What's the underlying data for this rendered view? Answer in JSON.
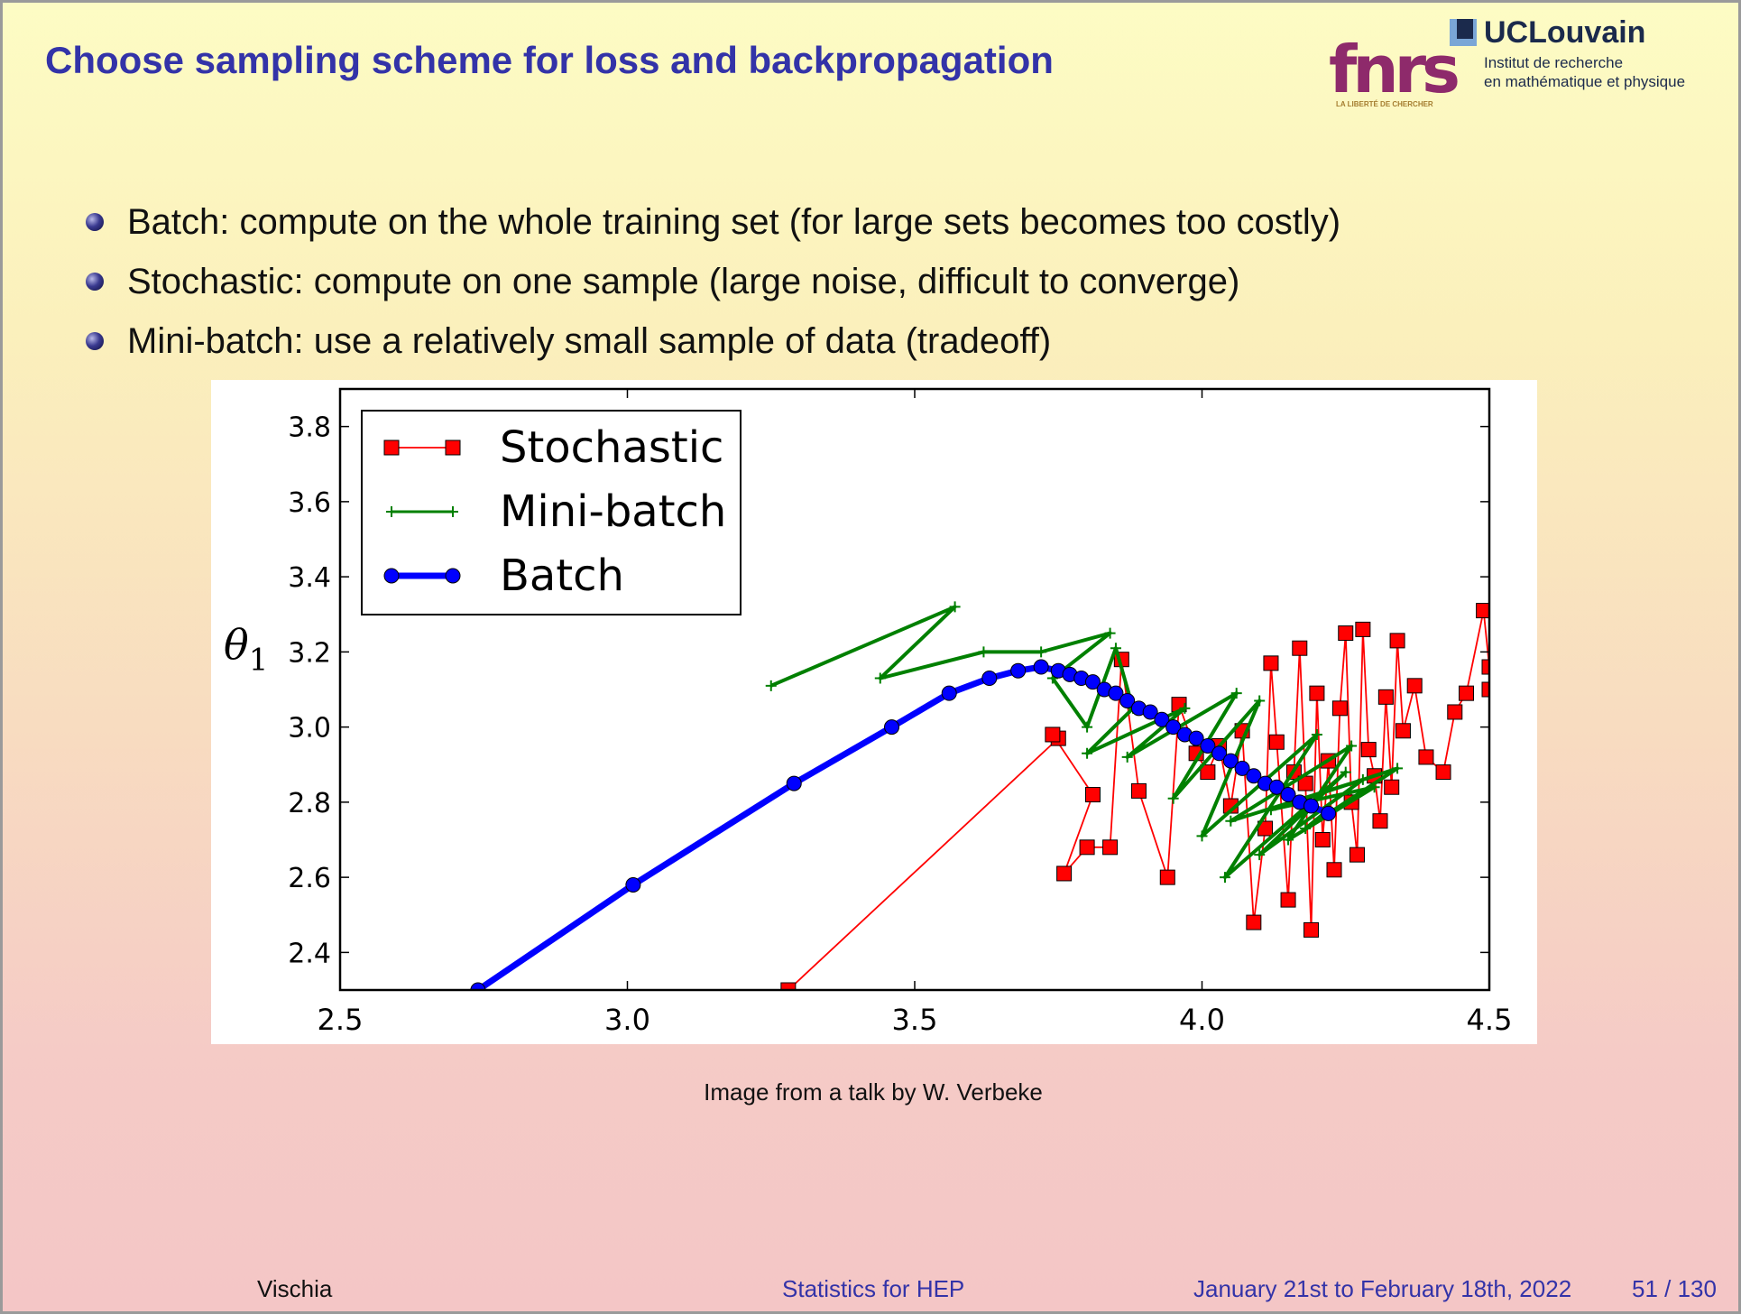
{
  "slide": {
    "title": "Choose sampling scheme for loss and backpropagation",
    "bullets": [
      "Batch: compute on the whole training set (for large sets becomes too costly)",
      "Stochastic: compute on one sample (large noise, difficult to converge)",
      "Mini-batch: use a relatively small sample of data (tradeoff)"
    ],
    "caption": "Image from a talk by W. Verbeke"
  },
  "logos": {
    "fnrs_word": "fnrs",
    "fnrs_tagline": "LA LIBERTÉ DE CHERCHER",
    "ucl_name": "UCLouvain",
    "ucl_line1": "Institut de recherche",
    "ucl_line2": "en mathématique et physique"
  },
  "footer": {
    "author": "Vischia",
    "course": "Statistics for HEP",
    "dates": "January 21st to February 18th, 2022",
    "page": "51 / 130"
  },
  "colors": {
    "title": "#3333a8",
    "stochastic": "#ff0000",
    "minibatch": "#008000",
    "batch": "#0000ff"
  },
  "chart_data": {
    "type": "line",
    "ylabel": "θ1",
    "xlabel": "",
    "xlim": [
      2.5,
      4.5
    ],
    "ylim": [
      2.3,
      3.9
    ],
    "xticks": [
      2.5,
      3.0,
      3.5,
      4.0,
      4.5
    ],
    "xtick_labels": [
      "2.5",
      "3.0",
      "3.5",
      "4.0",
      "4.5"
    ],
    "yticks": [
      2.4,
      2.6,
      2.8,
      3.0,
      3.2,
      3.4,
      3.6,
      3.8
    ],
    "ytick_labels": [
      "2.4",
      "2.6",
      "2.8",
      "3.0",
      "3.2",
      "3.4",
      "3.6",
      "3.8"
    ],
    "legend_position": "top-left",
    "series": [
      {
        "name": "Stochastic",
        "marker": "square",
        "points": [
          [
            3.28,
            2.3
          ],
          [
            3.75,
            2.97
          ],
          [
            3.74,
            2.98
          ],
          [
            3.81,
            2.82
          ],
          [
            3.76,
            2.61
          ],
          [
            3.8,
            2.68
          ],
          [
            3.84,
            2.68
          ],
          [
            3.86,
            3.18
          ],
          [
            3.89,
            2.83
          ],
          [
            3.94,
            2.6
          ],
          [
            3.96,
            3.06
          ],
          [
            3.99,
            2.93
          ],
          [
            4.01,
            2.88
          ],
          [
            4.03,
            2.95
          ],
          [
            4.05,
            2.79
          ],
          [
            4.07,
            2.99
          ],
          [
            4.09,
            2.48
          ],
          [
            4.11,
            2.73
          ],
          [
            4.12,
            3.17
          ],
          [
            4.13,
            2.96
          ],
          [
            4.15,
            2.54
          ],
          [
            4.16,
            2.88
          ],
          [
            4.17,
            3.21
          ],
          [
            4.18,
            2.85
          ],
          [
            4.19,
            2.46
          ],
          [
            4.2,
            3.09
          ],
          [
            4.21,
            2.7
          ],
          [
            4.22,
            2.91
          ],
          [
            4.23,
            2.62
          ],
          [
            4.24,
            3.05
          ],
          [
            4.25,
            3.25
          ],
          [
            4.26,
            2.8
          ],
          [
            4.27,
            2.66
          ],
          [
            4.28,
            3.26
          ],
          [
            4.29,
            2.94
          ],
          [
            4.3,
            2.87
          ],
          [
            4.31,
            2.75
          ],
          [
            4.32,
            3.08
          ],
          [
            4.33,
            2.84
          ],
          [
            4.34,
            3.23
          ],
          [
            4.35,
            2.99
          ],
          [
            4.37,
            3.11
          ],
          [
            4.39,
            2.92
          ],
          [
            4.42,
            2.88
          ],
          [
            4.44,
            3.04
          ],
          [
            4.46,
            3.09
          ],
          [
            4.49,
            3.31
          ],
          [
            4.5,
            3.16
          ],
          [
            4.5,
            3.1
          ]
        ]
      },
      {
        "name": "Mini-batch",
        "marker": "plus",
        "points": [
          [
            3.25,
            3.11
          ],
          [
            3.57,
            3.32
          ],
          [
            3.44,
            3.13
          ],
          [
            3.62,
            3.2
          ],
          [
            3.72,
            3.2
          ],
          [
            3.84,
            3.25
          ],
          [
            3.74,
            3.13
          ],
          [
            3.8,
            3.0
          ],
          [
            3.85,
            3.21
          ],
          [
            3.88,
            3.05
          ],
          [
            3.8,
            2.93
          ],
          [
            3.97,
            3.05
          ],
          [
            3.87,
            2.92
          ],
          [
            4.06,
            3.09
          ],
          [
            3.95,
            2.81
          ],
          [
            4.1,
            3.07
          ],
          [
            4.0,
            2.71
          ],
          [
            4.2,
            2.98
          ],
          [
            4.04,
            2.6
          ],
          [
            4.25,
            2.88
          ],
          [
            4.1,
            2.66
          ],
          [
            4.28,
            2.86
          ],
          [
            4.05,
            2.75
          ],
          [
            4.26,
            2.95
          ],
          [
            4.15,
            2.7
          ],
          [
            4.3,
            2.84
          ],
          [
            4.12,
            2.78
          ],
          [
            4.34,
            2.89
          ],
          [
            4.18,
            2.73
          ],
          [
            4.22,
            2.78
          ]
        ]
      },
      {
        "name": "Batch",
        "marker": "circle",
        "points": [
          [
            2.74,
            2.3
          ],
          [
            3.01,
            2.58
          ],
          [
            3.29,
            2.85
          ],
          [
            3.46,
            3.0
          ],
          [
            3.56,
            3.09
          ],
          [
            3.63,
            3.13
          ],
          [
            3.68,
            3.15
          ],
          [
            3.72,
            3.16
          ],
          [
            3.75,
            3.15
          ],
          [
            3.77,
            3.14
          ],
          [
            3.79,
            3.13
          ],
          [
            3.81,
            3.12
          ],
          [
            3.83,
            3.1
          ],
          [
            3.85,
            3.09
          ],
          [
            3.87,
            3.07
          ],
          [
            3.89,
            3.05
          ],
          [
            3.91,
            3.04
          ],
          [
            3.93,
            3.02
          ],
          [
            3.95,
            3.0
          ],
          [
            3.97,
            2.98
          ],
          [
            3.99,
            2.97
          ],
          [
            4.01,
            2.95
          ],
          [
            4.03,
            2.93
          ],
          [
            4.05,
            2.91
          ],
          [
            4.07,
            2.89
          ],
          [
            4.09,
            2.87
          ],
          [
            4.11,
            2.85
          ],
          [
            4.13,
            2.84
          ],
          [
            4.15,
            2.82
          ],
          [
            4.17,
            2.8
          ],
          [
            4.19,
            2.79
          ],
          [
            4.22,
            2.77
          ]
        ]
      }
    ]
  }
}
